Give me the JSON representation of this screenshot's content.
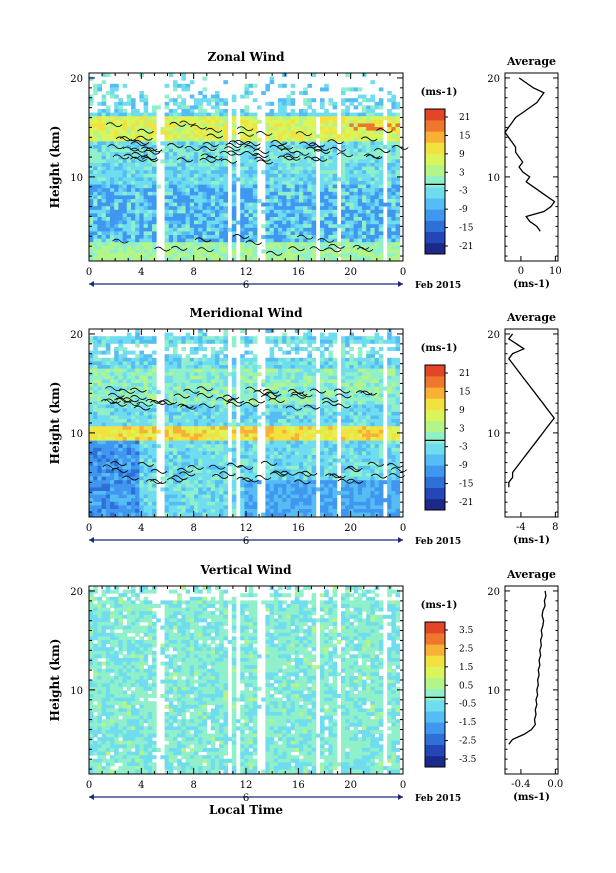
{
  "colors": {
    "scale": [
      "#1b2a8a",
      "#2447b8",
      "#2f6fd8",
      "#3f97f0",
      "#56bdf4",
      "#6fdcef",
      "#8ff0c9",
      "#b3f589",
      "#d9f55a",
      "#f3e13f",
      "#f7b236",
      "#f1762d",
      "#e34527"
    ]
  },
  "xaxis": {
    "ticks": [
      "0",
      "4",
      "8",
      "12",
      "16",
      "20",
      "0"
    ],
    "date": "6",
    "month": "Feb 2015",
    "label": "Local Time"
  },
  "yaxis": {
    "label": "Height (km)",
    "ticks": [
      "20",
      "10"
    ]
  },
  "panels": [
    {
      "title": "Zonal Wind",
      "unit": "(ms-1)",
      "cbar_ticks": [
        "21",
        "15",
        "9",
        "3",
        "-3",
        "-9",
        "-15",
        "-21"
      ],
      "avg_title": "Average",
      "avg_xticks": [
        "0",
        "10"
      ],
      "avg_unit": "(ms-1)"
    },
    {
      "title": "Meridional Wind",
      "unit": "(ms-1)",
      "cbar_ticks": [
        "21",
        "15",
        "9",
        "3",
        "-3",
        "-9",
        "-15",
        "-21"
      ],
      "avg_title": "Average",
      "avg_xticks": [
        "-4",
        "8"
      ],
      "avg_unit": "(ms-1)"
    },
    {
      "title": "Vertical Wind",
      "unit": "(ms-1)",
      "cbar_ticks": [
        "3.5",
        "2.5",
        "1.5",
        "0.5",
        "-0.5",
        "-1.5",
        "-2.5",
        "-3.5"
      ],
      "avg_title": "Average",
      "avg_xticks": [
        "-0.4",
        "0.0"
      ],
      "avg_unit": "(ms-1)"
    }
  ],
  "chart_data": [
    {
      "type": "heatmap",
      "title": "Zonal Wind",
      "xlabel": "",
      "ylabel": "Height (km)",
      "xlim": [
        0,
        24
      ],
      "ylim": [
        1.5,
        20.5
      ],
      "colorbar": {
        "range": [
          -24,
          24
        ],
        "ticks": [
          -21,
          -15,
          -9,
          -3,
          3,
          9,
          15,
          21
        ],
        "unit": "ms-1"
      },
      "profile_x": [
        0,
        2,
        4,
        7,
        6,
        5,
        3,
        1,
        -1,
        -2,
        -3,
        -4,
        -3,
        -2,
        -1,
        -1,
        0,
        1,
        0,
        1,
        3,
        2,
        4,
        6,
        8,
        10,
        9,
        7,
        2,
        3,
        5,
        6
      ],
      "profile_y": [
        20,
        19.5,
        19,
        18.5,
        18,
        17.5,
        17,
        16.5,
        16,
        15.5,
        15,
        14.5,
        14,
        13.5,
        13,
        12.5,
        12,
        11.5,
        11,
        10.5,
        10,
        9.5,
        9,
        8.5,
        8,
        7.5,
        7,
        6.5,
        6,
        5.5,
        5,
        4.5
      ],
      "profile_xlim": [
        -4,
        11
      ]
    },
    {
      "type": "heatmap",
      "title": "Meridional Wind",
      "xlabel": "",
      "ylabel": "Height (km)",
      "xlim": [
        0,
        24
      ],
      "ylim": [
        1.5,
        20.5
      ],
      "colorbar": {
        "range": [
          -24,
          24
        ],
        "ticks": [
          -21,
          -15,
          -9,
          -3,
          3,
          9,
          15,
          21
        ],
        "unit": "ms-1"
      },
      "profile_x": [
        -3,
        -4,
        -2,
        0,
        -3,
        -4,
        -3,
        -2,
        -1,
        0,
        1,
        2,
        3,
        4,
        5,
        6,
        7,
        8,
        7,
        6,
        5,
        4,
        3,
        2,
        1,
        0,
        -1,
        -2,
        -3,
        -3,
        -4,
        -4
      ],
      "profile_y": [
        20,
        19.5,
        19,
        18.5,
        18,
        17.5,
        17,
        16.5,
        16,
        15.5,
        15,
        14.5,
        14,
        13.5,
        13,
        12.5,
        12,
        11.5,
        11,
        10.5,
        10,
        9.5,
        9,
        8.5,
        8,
        7.5,
        7,
        6.5,
        6,
        5.5,
        5,
        4.5
      ],
      "profile_xlim": [
        -5,
        9
      ]
    },
    {
      "type": "heatmap",
      "title": "Vertical Wind",
      "xlabel": "Local Time",
      "ylabel": "Height (km)",
      "xlim": [
        0,
        24
      ],
      "ylim": [
        1.5,
        20.5
      ],
      "colorbar": {
        "range": [
          -4,
          4
        ],
        "ticks": [
          -3.5,
          -2.5,
          -1.5,
          -0.5,
          0.5,
          1.5,
          2.5,
          3.5
        ],
        "unit": "ms-1"
      },
      "profile_x": [
        -0.02,
        -0.01,
        -0.03,
        -0.02,
        -0.05,
        -0.06,
        -0.04,
        -0.05,
        -0.07,
        -0.06,
        -0.08,
        -0.07,
        -0.09,
        -0.08,
        -0.1,
        -0.09,
        -0.11,
        -0.1,
        -0.12,
        -0.11,
        -0.13,
        -0.12,
        -0.14,
        -0.13,
        -0.15,
        -0.14,
        -0.16,
        -0.15,
        -0.2,
        -0.3,
        -0.45,
        -0.5
      ],
      "profile_y": [
        20,
        19.5,
        19,
        18.5,
        18,
        17.5,
        17,
        16.5,
        16,
        15.5,
        15,
        14.5,
        14,
        13.5,
        13,
        12.5,
        12,
        11.5,
        11,
        10.5,
        10,
        9.5,
        9,
        8.5,
        8,
        7.5,
        7,
        6.5,
        6,
        5.5,
        5,
        4.5
      ],
      "profile_xlim": [
        -0.55,
        0.15
      ]
    }
  ]
}
